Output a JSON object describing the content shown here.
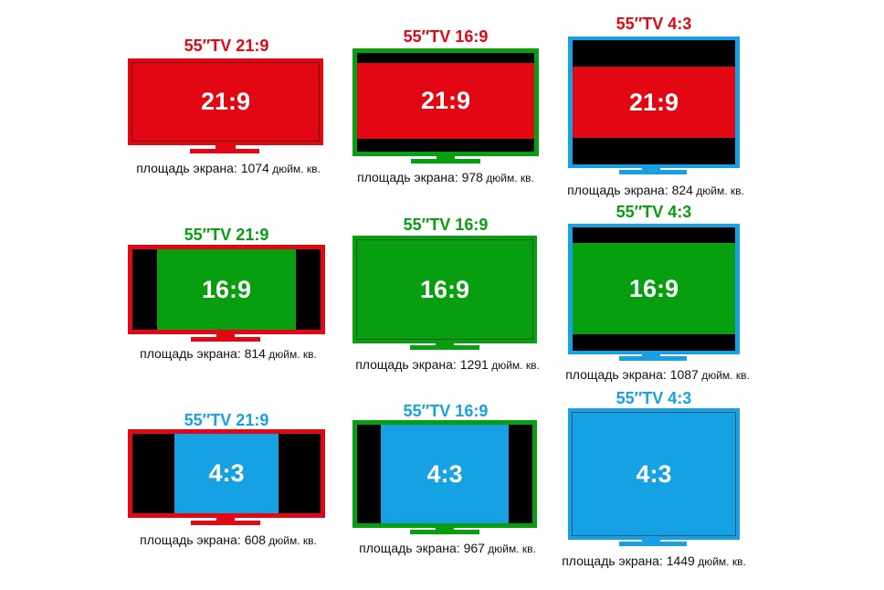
{
  "colors": {
    "red": "#e30613",
    "green": "#079e10",
    "blue": "#15a1e3",
    "black": "#000000"
  },
  "rows": [
    {
      "content_label": "21:9",
      "content_color": "red",
      "items": [
        {
          "title": "55″TV 21:9",
          "title_color": "red",
          "area": "1074",
          "caption_prefix": "площадь экрана: ",
          "caption_unit": " дюйм. кв."
        },
        {
          "title": "55″TV 16:9",
          "title_color": "red",
          "area": "978",
          "caption_prefix": "площадь экрана: ",
          "caption_unit": " дюйм. кв."
        },
        {
          "title": "55″TV 4:3",
          "title_color": "red",
          "area": "824",
          "caption_prefix": "площадь экрана: ",
          "caption_unit": " дюйм. кв."
        }
      ]
    },
    {
      "content_label": "16:9",
      "content_color": "green",
      "items": [
        {
          "title": "55″TV 21:9",
          "title_color": "green",
          "area": "814",
          "caption_prefix": "площадь экрана: ",
          "caption_unit": " дюйм. кв."
        },
        {
          "title": "55″TV 16:9",
          "title_color": "green",
          "area": "1291",
          "caption_prefix": "площадь экрана: ",
          "caption_unit": " дюйм. кв."
        },
        {
          "title": "55″TV 4:3",
          "title_color": "green",
          "area": "1087",
          "caption_prefix": "площадь экрана: ",
          "caption_unit": " дюйм. кв."
        }
      ]
    },
    {
      "content_label": "4:3",
      "content_color": "blue",
      "items": [
        {
          "title": "55″TV 21:9",
          "title_color": "blue",
          "area": "608",
          "caption_prefix": "площадь экрана: ",
          "caption_unit": " дюйм. кв."
        },
        {
          "title": "55″TV 16:9",
          "title_color": "blue",
          "area": "967",
          "caption_prefix": "площадь экрана: ",
          "caption_unit": " дюйм. кв."
        },
        {
          "title": "55″TV 4:3",
          "title_color": "blue",
          "area": "1449",
          "caption_prefix": "площадь экрана: ",
          "caption_unit": " дюйм. кв."
        }
      ]
    }
  ]
}
